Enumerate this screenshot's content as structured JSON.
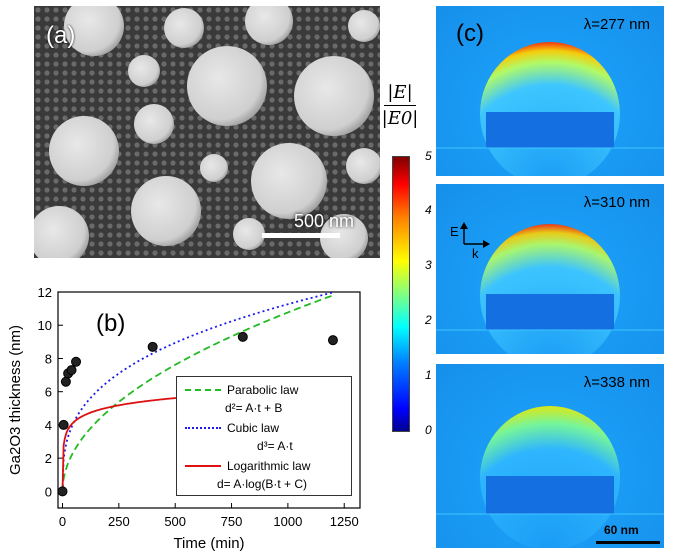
{
  "panel_a": {
    "label": "(a)",
    "scale_bar": "500 nm"
  },
  "panel_b": {
    "label": "(b)",
    "legend": {
      "parabolic": "Parabolic law",
      "parabolic_eq": "d²= A·t + B",
      "cubic": "Cubic law",
      "cubic_eq": "d³= A·t",
      "log": "Logarithmic law",
      "log_eq": "d= A·log(B·t + C)"
    }
  },
  "chart_data": {
    "type": "scatter",
    "xlabel": "Time (min)",
    "ylabel": "Ga2O3 thickness (nm)",
    "xlim": [
      -20,
      1320
    ],
    "ylim": [
      -1,
      12
    ],
    "xticks": [
      0,
      250,
      500,
      750,
      1000,
      1250
    ],
    "yticks": [
      0,
      2,
      4,
      6,
      8,
      10,
      12
    ],
    "points": {
      "x": [
        0,
        5,
        15,
        25,
        40,
        60,
        400,
        800,
        1200
      ],
      "y": [
        0,
        4,
        6.6,
        7.1,
        7.3,
        7.8,
        8.7,
        9.3,
        9.1
      ]
    },
    "series": [
      {
        "name": "Parabolic law",
        "style": "dashed",
        "color": "#22bb22"
      },
      {
        "name": "Cubic law",
        "style": "dotted",
        "color": "#1a1aee"
      },
      {
        "name": "Logarithmic law",
        "style": "solid",
        "color": "#dd1111"
      }
    ]
  },
  "colorbar": {
    "numerator": "|E|",
    "denominator": "|E0|",
    "ticks": [
      "5",
      "4",
      "3",
      "2",
      "1",
      "0"
    ]
  },
  "panel_c": {
    "label": "(c)",
    "maps": [
      "λ=277 nm",
      "λ=310 nm",
      "λ=338 nm"
    ],
    "e_label": "E",
    "k_label": "k",
    "scale_bar": "60 nm"
  }
}
